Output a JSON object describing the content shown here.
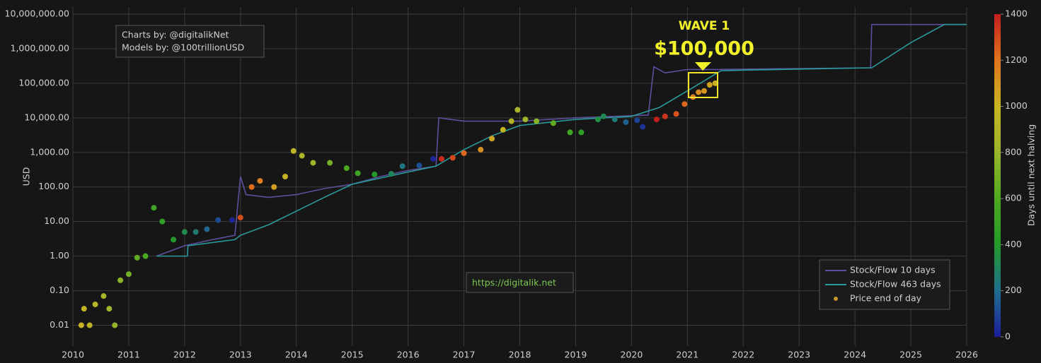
{
  "chart_data": {
    "type": "line",
    "y_label": "USD",
    "log_y": true,
    "grid": true,
    "legend_position": "bottom-right",
    "xlim": [
      2010,
      2026
    ],
    "xticks": [
      2010,
      2011,
      2012,
      2013,
      2014,
      2015,
      2016,
      2017,
      2018,
      2019,
      2020,
      2021,
      2022,
      2023,
      2024,
      2025,
      2026
    ],
    "ylim": [
      0.0025,
      16000000
    ],
    "yticks": [
      {
        "value": 0.01,
        "label": "0.01"
      },
      {
        "value": 0.1,
        "label": "0.10"
      },
      {
        "value": 1,
        "label": "1.00"
      },
      {
        "value": 10,
        "label": "10.00"
      },
      {
        "value": 100,
        "label": "100.00"
      },
      {
        "value": 1000,
        "label": "1,000.00"
      },
      {
        "value": 10000,
        "label": "10,000.00"
      },
      {
        "value": 100000,
        "label": "100,000.00"
      },
      {
        "value": 1000000,
        "label": "1,000,000.00"
      },
      {
        "value": 10000000,
        "label": "10,000,000.00"
      }
    ],
    "colorbar": {
      "title": "Days until next halving",
      "clim": [
        0,
        1400
      ],
      "ticks": [
        0,
        200,
        400,
        600,
        800,
        1000,
        1200,
        1400
      ],
      "colorscale": [
        [
          0,
          "#1c1c9a"
        ],
        [
          200,
          "#1f6f8f"
        ],
        [
          400,
          "#229a2a"
        ],
        [
          600,
          "#4fa81f"
        ],
        [
          800,
          "#9ab52a"
        ],
        [
          1000,
          "#c8b422"
        ],
        [
          1200,
          "#e0741c"
        ],
        [
          1400,
          "#c41e1e"
        ]
      ]
    },
    "series": [
      {
        "name": "Stock/Flow 10 days",
        "color": "#5e4f9e",
        "x": [
          2011.5,
          2012.0,
          2012.5,
          2012.9,
          2013.0,
          2013.1,
          2013.5,
          2014.0,
          2014.5,
          2015.0,
          2015.5,
          2016.0,
          2016.5,
          2016.55,
          2017.0,
          2018.0,
          2019.0,
          2020.3,
          2020.4,
          2020.6,
          2021.0,
          2021.5,
          2024.28,
          2024.3,
          2026.0
        ],
        "values": [
          1,
          2,
          3,
          4,
          200,
          60,
          50,
          60,
          90,
          120,
          200,
          300,
          400,
          10000,
          8000,
          8000,
          10000,
          12000,
          300000,
          200000,
          250000,
          250000,
          280000,
          5000000,
          5000000
        ]
      },
      {
        "name": "Stock/Flow 463 days",
        "color": "#2a9a9a",
        "x": [
          2011.5,
          2012.05,
          2012.06,
          2012.9,
          2013.0,
          2013.5,
          2014.0,
          2014.5,
          2015.0,
          2015.5,
          2016.0,
          2016.5,
          2017.0,
          2017.5,
          2018.0,
          2019.0,
          2020.0,
          2020.5,
          2021.0,
          2021.6,
          2022.0,
          2024.3,
          2025.0,
          2025.6,
          2026.0
        ],
        "values": [
          1,
          1,
          2,
          3,
          4,
          8,
          20,
          50,
          120,
          180,
          270,
          400,
          1200,
          3000,
          6000,
          9000,
          11000,
          20000,
          60000,
          230000,
          240000,
          280000,
          1500000,
          5000000,
          5000000
        ]
      },
      {
        "name": "Price end of day",
        "color": "#c8962a",
        "mode": "markers",
        "x": [
          2010.15,
          2010.2,
          2010.3,
          2010.4,
          2010.55,
          2010.65,
          2010.75,
          2010.85,
          2011.0,
          2011.15,
          2011.3,
          2011.45,
          2011.6,
          2011.8,
          2012.0,
          2012.2,
          2012.4,
          2012.6,
          2012.85,
          2013.0,
          2013.2,
          2013.35,
          2013.6,
          2013.8,
          2013.95,
          2014.1,
          2014.3,
          2014.6,
          2014.9,
          2015.1,
          2015.4,
          2015.7,
          2015.9,
          2016.2,
          2016.45,
          2016.6,
          2016.8,
          2017.0,
          2017.3,
          2017.5,
          2017.7,
          2017.85,
          2017.96,
          2018.1,
          2018.3,
          2018.6,
          2018.9,
          2019.1,
          2019.4,
          2019.5,
          2019.7,
          2019.9,
          2020.1,
          2020.2,
          2020.45,
          2020.6,
          2020.8,
          2020.95,
          2021.1,
          2021.2,
          2021.3,
          2021.4,
          2021.5
        ],
        "values": [
          0.01,
          0.03,
          0.01,
          0.04,
          0.07,
          0.03,
          0.01,
          0.2,
          0.3,
          0.9,
          1,
          25,
          10,
          3,
          5,
          5,
          6,
          11,
          11,
          13,
          100,
          150,
          100,
          200,
          1100,
          800,
          500,
          500,
          350,
          250,
          230,
          240,
          400,
          420,
          650,
          650,
          700,
          950,
          1200,
          2500,
          4500,
          8000,
          17000,
          9000,
          8000,
          7000,
          3800,
          3800,
          9000,
          11000,
          9000,
          7500,
          8500,
          5500,
          9000,
          11000,
          13000,
          25000,
          40000,
          55000,
          60000,
          90000,
          100000
        ],
        "color_values": [
          1007,
          989,
          953,
          916,
          861,
          825,
          788,
          752,
          697,
          642,
          588,
          533,
          478,
          405,
          332,
          259,
          186,
          113,
          22,
          1288,
          1215,
          1161,
          1069,
          996,
          942,
          887,
          814,
          704,
          595,
          522,
          412,
          303,
          230,
          120,
          29,
          1372,
          1299,
          1226,
          1117,
          1044,
          971,
          916,
          876,
          825,
          752,
          642,
          533,
          460,
          350,
          314,
          241,
          168,
          95,
          58,
          1400,
          1351,
          1278,
          1223,
          1168,
          1132,
          1095,
          1059,
          1022
        ]
      }
    ],
    "annotations": {
      "wave": "WAVE 1",
      "target": "$100,000",
      "credit_charts": "Charts by: @digitalikNet",
      "credit_models": "Models by: @100trillionUSD",
      "url": "https://digitalik.net"
    }
  }
}
